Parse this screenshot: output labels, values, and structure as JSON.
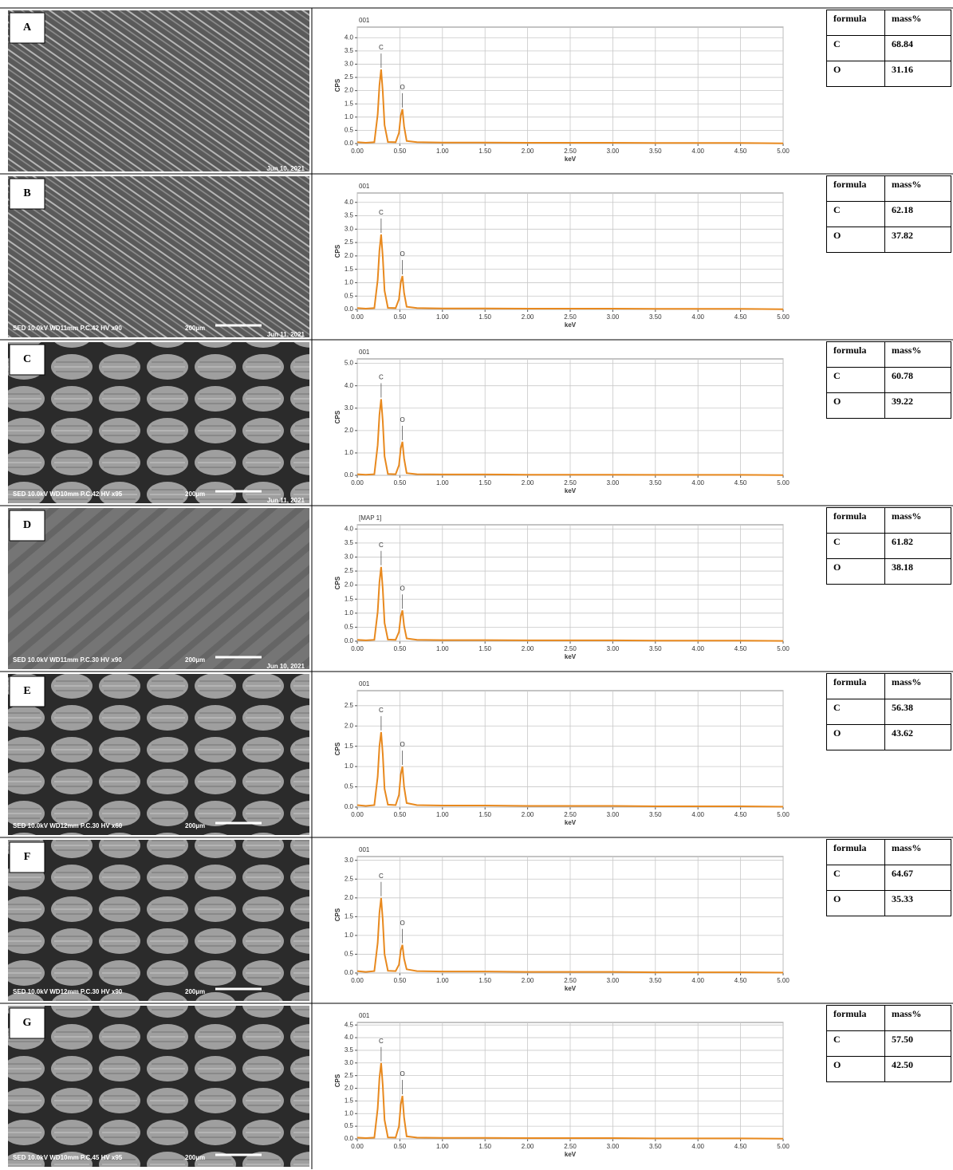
{
  "chart_data": [
    {
      "type": "line",
      "title": "001",
      "xlabel": "keV",
      "ylabel": "CPS",
      "color": "#e8891e",
      "grid": true,
      "x": [
        0,
        0.1,
        0.2,
        0.24,
        0.26,
        0.28,
        0.3,
        0.32,
        0.36,
        0.45,
        0.49,
        0.51,
        0.53,
        0.55,
        0.58,
        0.7,
        1.0,
        1.5,
        2.0,
        2.5,
        3.0,
        3.5,
        4.0,
        4.5,
        5.0
      ],
      "values": [
        0.05,
        0.03,
        0.05,
        1.1,
        2.2,
        2.8,
        1.95,
        0.7,
        0.06,
        0.05,
        0.4,
        1.05,
        1.3,
        0.65,
        0.1,
        0.05,
        0.04,
        0.04,
        0.03,
        0.03,
        0.03,
        0.02,
        0.02,
        0.02,
        0.01
      ],
      "annotations": [
        "C",
        "O"
      ],
      "xlim": [
        0,
        5
      ],
      "ylim": [
        0,
        4.4
      ],
      "xticks": [
        {
          "value": 0,
          "label": "0.00"
        },
        {
          "value": 0.5,
          "label": "0.50"
        },
        {
          "value": 1,
          "label": "1.00"
        },
        {
          "value": 1.5,
          "label": "1.50"
        },
        {
          "value": 2,
          "label": "2.00"
        },
        {
          "value": 2.5,
          "label": "2.50"
        },
        {
          "value": 3,
          "label": "3.00"
        },
        {
          "value": 3.5,
          "label": "3.50"
        },
        {
          "value": 4,
          "label": "4.00"
        },
        {
          "value": 4.5,
          "label": "4.50"
        },
        {
          "value": 5,
          "label": "5.00"
        }
      ],
      "yticks": [
        {
          "value": 0,
          "label": "0.0"
        },
        0.5,
        {
          "value": 1,
          "label": "1.0"
        },
        1.5,
        {
          "value": 2,
          "label": "2.0"
        },
        2.5,
        {
          "value": 3,
          "label": "3.0"
        },
        3.5,
        {
          "value": 4,
          "label": "4.0"
        }
      ]
    },
    {
      "type": "line",
      "title": "001",
      "xlabel": "keV",
      "ylabel": "CPS",
      "color": "#e8891e",
      "grid": true,
      "x": [
        0,
        0.1,
        0.2,
        0.24,
        0.26,
        0.28,
        0.3,
        0.32,
        0.36,
        0.45,
        0.49,
        0.51,
        0.53,
        0.55,
        0.58,
        0.7,
        1.0,
        1.5,
        2.0,
        2.5,
        3.0,
        3.5,
        4.0,
        4.5,
        5.0
      ],
      "values": [
        0.05,
        0.03,
        0.05,
        1.1,
        2.2,
        2.8,
        1.95,
        0.7,
        0.06,
        0.05,
        0.38,
        1.0,
        1.25,
        0.62,
        0.1,
        0.05,
        0.04,
        0.04,
        0.03,
        0.03,
        0.03,
        0.02,
        0.02,
        0.02,
        0.01
      ],
      "annotations": [
        "C",
        "O"
      ],
      "xlim": [
        0,
        5
      ],
      "ylim": [
        0,
        4.35
      ],
      "xticks": [
        {
          "value": 0,
          "label": "0.00"
        },
        {
          "value": 0.5,
          "label": "0.50"
        },
        {
          "value": 1,
          "label": "1.00"
        },
        {
          "value": 1.5,
          "label": "1.50"
        },
        {
          "value": 2,
          "label": "2.00"
        },
        {
          "value": 2.5,
          "label": "2.50"
        },
        {
          "value": 3,
          "label": "3.00"
        },
        {
          "value": 3.5,
          "label": "3.50"
        },
        {
          "value": 4,
          "label": "4.00"
        },
        {
          "value": 4.5,
          "label": "4.50"
        },
        {
          "value": 5,
          "label": "5.00"
        }
      ],
      "yticks": [
        {
          "value": 0,
          "label": "0.0"
        },
        0.5,
        {
          "value": 1,
          "label": "1.0"
        },
        1.5,
        {
          "value": 2,
          "label": "2.0"
        },
        2.5,
        {
          "value": 3,
          "label": "3.0"
        },
        3.5,
        {
          "value": 4,
          "label": "4.0"
        }
      ]
    },
    {
      "type": "line",
      "title": "001",
      "xlabel": "keV",
      "ylabel": "CPS",
      "color": "#e8891e",
      "grid": true,
      "x": [
        0,
        0.1,
        0.2,
        0.24,
        0.26,
        0.28,
        0.3,
        0.32,
        0.36,
        0.45,
        0.49,
        0.51,
        0.53,
        0.55,
        0.58,
        0.7,
        1.0,
        1.5,
        2.0,
        2.5,
        3.0,
        3.5,
        4.0,
        4.5,
        5.0
      ],
      "values": [
        0.05,
        0.03,
        0.05,
        1.35,
        2.7,
        3.4,
        2.4,
        0.85,
        0.06,
        0.05,
        0.45,
        1.2,
        1.5,
        0.75,
        0.1,
        0.05,
        0.04,
        0.04,
        0.03,
        0.03,
        0.03,
        0.02,
        0.02,
        0.02,
        0.01
      ],
      "annotations": [
        "C",
        "O"
      ],
      "xlim": [
        0,
        5
      ],
      "ylim": [
        0,
        5.2
      ],
      "xticks": [
        {
          "value": 0,
          "label": "0.00"
        },
        {
          "value": 0.5,
          "label": "0.50"
        },
        {
          "value": 1,
          "label": "1.00"
        },
        {
          "value": 1.5,
          "label": "1.50"
        },
        {
          "value": 2,
          "label": "2.00"
        },
        {
          "value": 2.5,
          "label": "2.50"
        },
        {
          "value": 3,
          "label": "3.00"
        },
        {
          "value": 3.5,
          "label": "3.50"
        },
        {
          "value": 4,
          "label": "4.00"
        },
        {
          "value": 4.5,
          "label": "4.50"
        },
        {
          "value": 5,
          "label": "5.00"
        }
      ],
      "yticks": [
        {
          "value": 0,
          "label": "0.0"
        },
        {
          "value": 1,
          "label": "1.0"
        },
        {
          "value": 2,
          "label": "2.0"
        },
        {
          "value": 3,
          "label": "3.0"
        },
        {
          "value": 4,
          "label": "4.0"
        },
        {
          "value": 5,
          "label": "5.0"
        }
      ]
    },
    {
      "type": "line",
      "title": "[MAP 1]",
      "xlabel": "keV",
      "ylabel": "CPS",
      "color": "#e8891e",
      "grid": true,
      "x": [
        0,
        0.1,
        0.2,
        0.24,
        0.26,
        0.28,
        0.3,
        0.32,
        0.36,
        0.45,
        0.49,
        0.51,
        0.53,
        0.55,
        0.58,
        0.7,
        1.0,
        1.5,
        2.0,
        2.5,
        3.0,
        3.5,
        4.0,
        4.5,
        5.0
      ],
      "values": [
        0.05,
        0.03,
        0.05,
        1.05,
        2.1,
        2.65,
        1.85,
        0.65,
        0.06,
        0.05,
        0.33,
        0.88,
        1.1,
        0.55,
        0.1,
        0.05,
        0.04,
        0.04,
        0.03,
        0.03,
        0.03,
        0.02,
        0.02,
        0.02,
        0.01
      ],
      "annotations": [
        "C",
        "O"
      ],
      "xlim": [
        0,
        5
      ],
      "ylim": [
        0,
        4.15
      ],
      "xticks": [
        {
          "value": 0,
          "label": "0.00"
        },
        {
          "value": 0.5,
          "label": "0.50"
        },
        {
          "value": 1,
          "label": "1.00"
        },
        {
          "value": 1.5,
          "label": "1.50"
        },
        {
          "value": 2,
          "label": "2.00"
        },
        {
          "value": 2.5,
          "label": "2.50"
        },
        {
          "value": 3,
          "label": "3.00"
        },
        {
          "value": 3.5,
          "label": "3.50"
        },
        {
          "value": 4,
          "label": "4.00"
        },
        {
          "value": 4.5,
          "label": "4.50"
        },
        {
          "value": 5,
          "label": "5.00"
        }
      ],
      "yticks": [
        {
          "value": 0,
          "label": "0.0"
        },
        0.5,
        {
          "value": 1,
          "label": "1.0"
        },
        1.5,
        {
          "value": 2,
          "label": "2.0"
        },
        2.5,
        {
          "value": 3,
          "label": "3.0"
        },
        3.5,
        {
          "value": 4,
          "label": "4.0"
        }
      ]
    },
    {
      "type": "line",
      "title": "001",
      "xlabel": "keV",
      "ylabel": "CPS",
      "color": "#e8891e",
      "grid": true,
      "x": [
        0,
        0.1,
        0.2,
        0.24,
        0.26,
        0.28,
        0.3,
        0.32,
        0.36,
        0.45,
        0.49,
        0.51,
        0.53,
        0.55,
        0.58,
        0.7,
        1.0,
        1.5,
        2.0,
        2.5,
        3.0,
        3.5,
        4.0,
        4.5,
        5.0
      ],
      "values": [
        0.05,
        0.03,
        0.05,
        0.75,
        1.5,
        1.85,
        1.3,
        0.45,
        0.06,
        0.05,
        0.3,
        0.8,
        1.0,
        0.5,
        0.1,
        0.05,
        0.04,
        0.04,
        0.03,
        0.03,
        0.03,
        0.02,
        0.02,
        0.02,
        0.01
      ],
      "annotations": [
        "C",
        "O"
      ],
      "xlim": [
        0,
        5
      ],
      "ylim": [
        0,
        2.87
      ],
      "xticks": [
        {
          "value": 0,
          "label": "0.00"
        },
        {
          "value": 0.5,
          "label": "0.50"
        },
        {
          "value": 1,
          "label": "1.00"
        },
        {
          "value": 1.5,
          "label": "1.50"
        },
        {
          "value": 2,
          "label": "2.00"
        },
        {
          "value": 2.5,
          "label": "2.50"
        },
        {
          "value": 3,
          "label": "3.00"
        },
        {
          "value": 3.5,
          "label": "3.50"
        },
        {
          "value": 4,
          "label": "4.00"
        },
        {
          "value": 4.5,
          "label": "4.50"
        },
        {
          "value": 5,
          "label": "5.00"
        }
      ],
      "yticks": [
        {
          "value": 0,
          "label": "0.0"
        },
        0.5,
        {
          "value": 1,
          "label": "1.0"
        },
        1.5,
        {
          "value": 2,
          "label": "2.0"
        },
        2.5
      ]
    },
    {
      "type": "line",
      "title": "001",
      "xlabel": "keV",
      "ylabel": "CPS",
      "color": "#e8891e",
      "grid": true,
      "x": [
        0,
        0.1,
        0.2,
        0.24,
        0.26,
        0.28,
        0.3,
        0.32,
        0.36,
        0.45,
        0.49,
        0.51,
        0.53,
        0.55,
        0.58,
        0.7,
        1.0,
        1.5,
        2.0,
        2.5,
        3.0,
        3.5,
        4.0,
        4.5,
        5.0
      ],
      "values": [
        0.05,
        0.03,
        0.05,
        0.8,
        1.6,
        2.0,
        1.4,
        0.5,
        0.06,
        0.05,
        0.22,
        0.6,
        0.75,
        0.38,
        0.1,
        0.05,
        0.04,
        0.04,
        0.03,
        0.03,
        0.03,
        0.02,
        0.02,
        0.02,
        0.01
      ],
      "annotations": [
        "C",
        "O"
      ],
      "xlim": [
        0,
        5
      ],
      "ylim": [
        0,
        3.1
      ],
      "xticks": [
        {
          "value": 0,
          "label": "0.00"
        },
        {
          "value": 0.5,
          "label": "0.50"
        },
        {
          "value": 1,
          "label": "1.00"
        },
        {
          "value": 1.5,
          "label": "1.50"
        },
        {
          "value": 2,
          "label": "2.00"
        },
        {
          "value": 2.5,
          "label": "2.50"
        },
        {
          "value": 3,
          "label": "3.00"
        },
        {
          "value": 3.5,
          "label": "3.50"
        },
        {
          "value": 4,
          "label": "4.00"
        },
        {
          "value": 4.5,
          "label": "4.50"
        },
        {
          "value": 5,
          "label": "5.00"
        }
      ],
      "yticks": [
        {
          "value": 0,
          "label": "0.0"
        },
        0.5,
        {
          "value": 1,
          "label": "1.0"
        },
        1.5,
        {
          "value": 2,
          "label": "2.0"
        },
        2.5,
        {
          "value": 3,
          "label": "3.0"
        }
      ]
    },
    {
      "type": "line",
      "title": "001",
      "xlabel": "keV",
      "ylabel": "CPS",
      "color": "#e8891e",
      "grid": true,
      "x": [
        0,
        0.1,
        0.2,
        0.24,
        0.26,
        0.28,
        0.3,
        0.32,
        0.36,
        0.45,
        0.49,
        0.51,
        0.53,
        0.55,
        0.58,
        0.7,
        1.0,
        1.5,
        2.0,
        2.5,
        3.0,
        3.5,
        4.0,
        4.5,
        5.0
      ],
      "values": [
        0.05,
        0.03,
        0.05,
        1.2,
        2.4,
        3.0,
        2.1,
        0.75,
        0.06,
        0.05,
        0.5,
        1.35,
        1.7,
        0.85,
        0.1,
        0.05,
        0.04,
        0.04,
        0.03,
        0.03,
        0.03,
        0.02,
        0.02,
        0.02,
        0.01
      ],
      "annotations": [
        "C",
        "O"
      ],
      "xlim": [
        0,
        5
      ],
      "ylim": [
        0,
        4.6
      ],
      "xticks": [
        {
          "value": 0,
          "label": "0.00"
        },
        {
          "value": 0.5,
          "label": "0.50"
        },
        {
          "value": 1,
          "label": "1.00"
        },
        {
          "value": 1.5,
          "label": "1.50"
        },
        {
          "value": 2,
          "label": "2.00"
        },
        {
          "value": 2.5,
          "label": "2.50"
        },
        {
          "value": 3,
          "label": "3.00"
        },
        {
          "value": 3.5,
          "label": "3.50"
        },
        {
          "value": 4,
          "label": "4.00"
        },
        {
          "value": 4.5,
          "label": "4.50"
        },
        {
          "value": 5,
          "label": "5.00"
        }
      ],
      "yticks": [
        {
          "value": 0,
          "label": "0.0"
        },
        0.5,
        {
          "value": 1,
          "label": "1.0"
        },
        1.5,
        {
          "value": 2,
          "label": "2.0"
        },
        2.5,
        {
          "value": 3,
          "label": "3.0"
        },
        3.5,
        {
          "value": 4,
          "label": "4.0"
        },
        4.5
      ]
    }
  ],
  "panels": [
    {
      "label": "A",
      "date": "Jun 10, 2021",
      "table": {
        "header": [
          "formula",
          "mass%"
        ],
        "rows": [
          [
            "C",
            "68.84"
          ],
          [
            "O",
            "31.16"
          ]
        ]
      }
    },
    {
      "label": "B",
      "sem_info": "SED 10.0kV WD11mm P.C.42  HV   x90",
      "scale": "200µm",
      "date": "Jun 11, 2021",
      "table": {
        "header": [
          "formula",
          "mass%"
        ],
        "rows": [
          [
            "C",
            "62.18"
          ],
          [
            "O",
            "37.82"
          ]
        ]
      }
    },
    {
      "label": "C",
      "sem_info": "SED 10.0kV WD10mm P.C.42  HV   x95",
      "scale": "200µm",
      "date": "Jun 11, 2021",
      "table": {
        "header": [
          "formula",
          "mass%"
        ],
        "rows": [
          [
            "C",
            "60.78"
          ],
          [
            "O",
            "39.22"
          ]
        ]
      }
    },
    {
      "label": "D",
      "sem_info": "SED 10.0kV WD11mm P.C.30  HV   x90",
      "scale": "200µm",
      "date": "Jun 10, 2021",
      "table": {
        "header": [
          "formula",
          "mass%"
        ],
        "rows": [
          [
            "C",
            "61.82"
          ],
          [
            "O",
            "38.18"
          ]
        ]
      }
    },
    {
      "label": "E",
      "sem_info": "SED 10.0kV WD12mm P.C.30  HV   x60",
      "scale": "200µm",
      "table": {
        "header": [
          "formula",
          "mass%"
        ],
        "rows": [
          [
            "C",
            "56.38"
          ],
          [
            "O",
            "43.62"
          ]
        ]
      }
    },
    {
      "label": "F",
      "sem_info": "SED 10.0kV WD12mm P.C.30  HV   x90",
      "scale": "200µm",
      "table": {
        "header": [
          "formula",
          "mass%"
        ],
        "rows": [
          [
            "C",
            "64.67"
          ],
          [
            "O",
            "35.33"
          ]
        ]
      }
    },
    {
      "label": "G",
      "sem_info": "SED 10.0kV WD10mm P.C.45  HV   x95",
      "scale": "200µm",
      "table": {
        "header": [
          "formula",
          "mass%"
        ],
        "rows": [
          [
            "C",
            "57.50"
          ],
          [
            "O",
            "42.50"
          ]
        ]
      }
    }
  ]
}
